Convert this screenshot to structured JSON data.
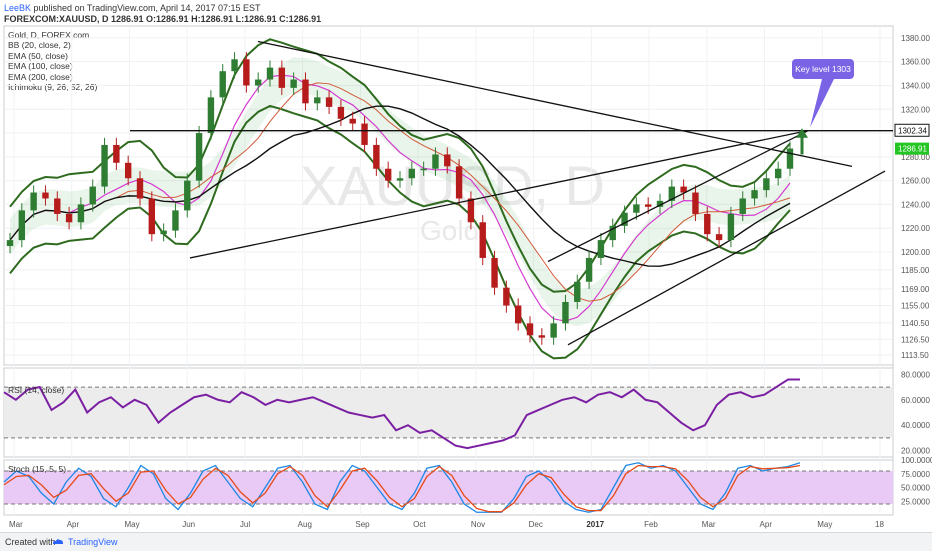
{
  "header": {
    "author": "LeeBK",
    "published": " published on TradingView.com, April 14, 2017 07:15 EST",
    "ohlc": "FOREXCOM:XAUUSD, D  1286.91  O:1286.91  H:1286.91  L:1286.91  C:1286.91"
  },
  "indicators": [
    "Gold, D, FOREX.com",
    "BB (20, close, 2)",
    "EMA (50, close)",
    "EMA (100, close)",
    "EMA (200, close)",
    "Ichimoku (9, 26, 52, 26)"
  ],
  "rsi_label": "RSI (14, close)",
  "stoch_label": "Stoch (15, 5, 5)",
  "callout": "Key level 1303",
  "watermark": {
    "symbol": "XAUUSD, D",
    "name": "Gold"
  },
  "footer": {
    "created": "Created with",
    "brand": "TradingView"
  },
  "colors": {
    "up": "#2e7d32",
    "down": "#b71c1c",
    "bb": "#2e6b1e",
    "ema50": "#d63bd1",
    "ema100": "#d15a3a",
    "ema200": "#111111",
    "rsi": "#7b1fa2",
    "stoch_k": "#1e88e5",
    "stoch_d": "#e64a19",
    "stoch_bg": "#e9c9f5",
    "last_price_bg": "#22c522",
    "callout": "#7b63e6",
    "arrow": "#2e7d32"
  },
  "chart_data": [
    {
      "type": "line",
      "title": "FOREXCOM:XAUUSD, D",
      "ylim": [
        1105,
        1390
      ],
      "y_ticks": [
        "1380.00",
        "1360.00",
        "1340.00",
        "1320.00",
        "1302.34",
        "1300.00",
        "1286.91",
        "1280.00",
        "1260.00",
        "1240.00",
        "1220.00",
        "1200.00",
        "1185.00",
        "1169.00",
        "1155.00",
        "1140.50",
        "1126.50",
        "1113.50"
      ],
      "price_labels": {
        "key_level": "1302.34",
        "last_price": "1286.91"
      },
      "x_ticks": [
        "Mar",
        "Apr",
        "May",
        "Jun",
        "Jul",
        "Aug",
        "Sep",
        "Oct",
        "Nov",
        "Dec",
        "2017",
        "Feb",
        "Mar",
        "Apr",
        "May",
        "18"
      ],
      "series": [
        {
          "name": "close",
          "values": [
            1210,
            1235,
            1250,
            1245,
            1232,
            1225,
            1240,
            1255,
            1290,
            1275,
            1262,
            1245,
            1215,
            1218,
            1235,
            1260,
            1300,
            1330,
            1352,
            1362,
            1340,
            1345,
            1355,
            1338,
            1345,
            1325,
            1330,
            1322,
            1312,
            1308,
            1290,
            1270,
            1260,
            1262,
            1270,
            1270,
            1282,
            1272,
            1245,
            1225,
            1195,
            1170,
            1155,
            1140,
            1130,
            1128,
            1140,
            1158,
            1175,
            1195,
            1210,
            1222,
            1233,
            1240,
            1238,
            1243,
            1255,
            1250,
            1232,
            1215,
            1210,
            1232,
            1245,
            1252,
            1262,
            1270,
            1287
          ]
        }
      ]
    },
    {
      "type": "line",
      "title": "RSI (14, close)",
      "ylim": [
        15,
        85
      ],
      "y_ticks": [
        "80.0000",
        "60.0000",
        "40.0000",
        "20.0000"
      ],
      "bands": [
        70,
        30
      ],
      "series": [
        {
          "name": "RSI",
          "values": [
            66,
            60,
            68,
            70,
            52,
            58,
            68,
            50,
            58,
            62,
            54,
            60,
            56,
            42,
            50,
            56,
            62,
            64,
            60,
            58,
            66,
            62,
            56,
            60,
            58,
            60,
            62,
            58,
            54,
            50,
            48,
            46,
            48,
            36,
            40,
            34,
            36,
            30,
            24,
            22,
            24,
            26,
            28,
            32,
            48,
            52,
            56,
            60,
            62,
            58,
            64,
            66,
            62,
            68,
            60,
            58,
            50,
            42,
            36,
            40,
            56,
            64,
            66,
            62,
            64,
            70,
            76,
            76
          ]
        }
      ]
    },
    {
      "type": "line",
      "title": "Stoch (15, 5, 5)",
      "ylim": [
        0,
        100
      ],
      "y_ticks": [
        "100.0000",
        "75.0000",
        "50.0000",
        "25.0000"
      ],
      "bands": [
        80,
        20
      ],
      "series": [
        {
          "name": "K",
          "values": [
            60,
            80,
            70,
            40,
            20,
            60,
            85,
            70,
            30,
            15,
            50,
            90,
            75,
            30,
            10,
            40,
            80,
            90,
            60,
            30,
            15,
            50,
            85,
            90,
            60,
            20,
            10,
            60,
            90,
            80,
            50,
            20,
            10,
            40,
            85,
            90,
            60,
            20,
            5,
            5,
            5,
            30,
            70,
            80,
            60,
            25,
            10,
            5,
            10,
            50,
            90,
            95,
            85,
            90,
            80,
            50,
            20,
            10,
            40,
            85,
            90,
            80,
            85,
            88,
            95
          ]
        },
        {
          "name": "D",
          "values": [
            55,
            70,
            72,
            55,
            32,
            45,
            72,
            75,
            48,
            25,
            40,
            78,
            80,
            45,
            20,
            32,
            65,
            85,
            72,
            42,
            22,
            40,
            75,
            88,
            72,
            35,
            15,
            45,
            80,
            85,
            62,
            32,
            15,
            30,
            70,
            88,
            72,
            35,
            12,
            6,
            6,
            22,
            55,
            75,
            68,
            38,
            15,
            8,
            8,
            35,
            75,
            90,
            88,
            88,
            84,
            62,
            32,
            15,
            30,
            72,
            88,
            84,
            85,
            86,
            90
          ]
        }
      ]
    }
  ]
}
